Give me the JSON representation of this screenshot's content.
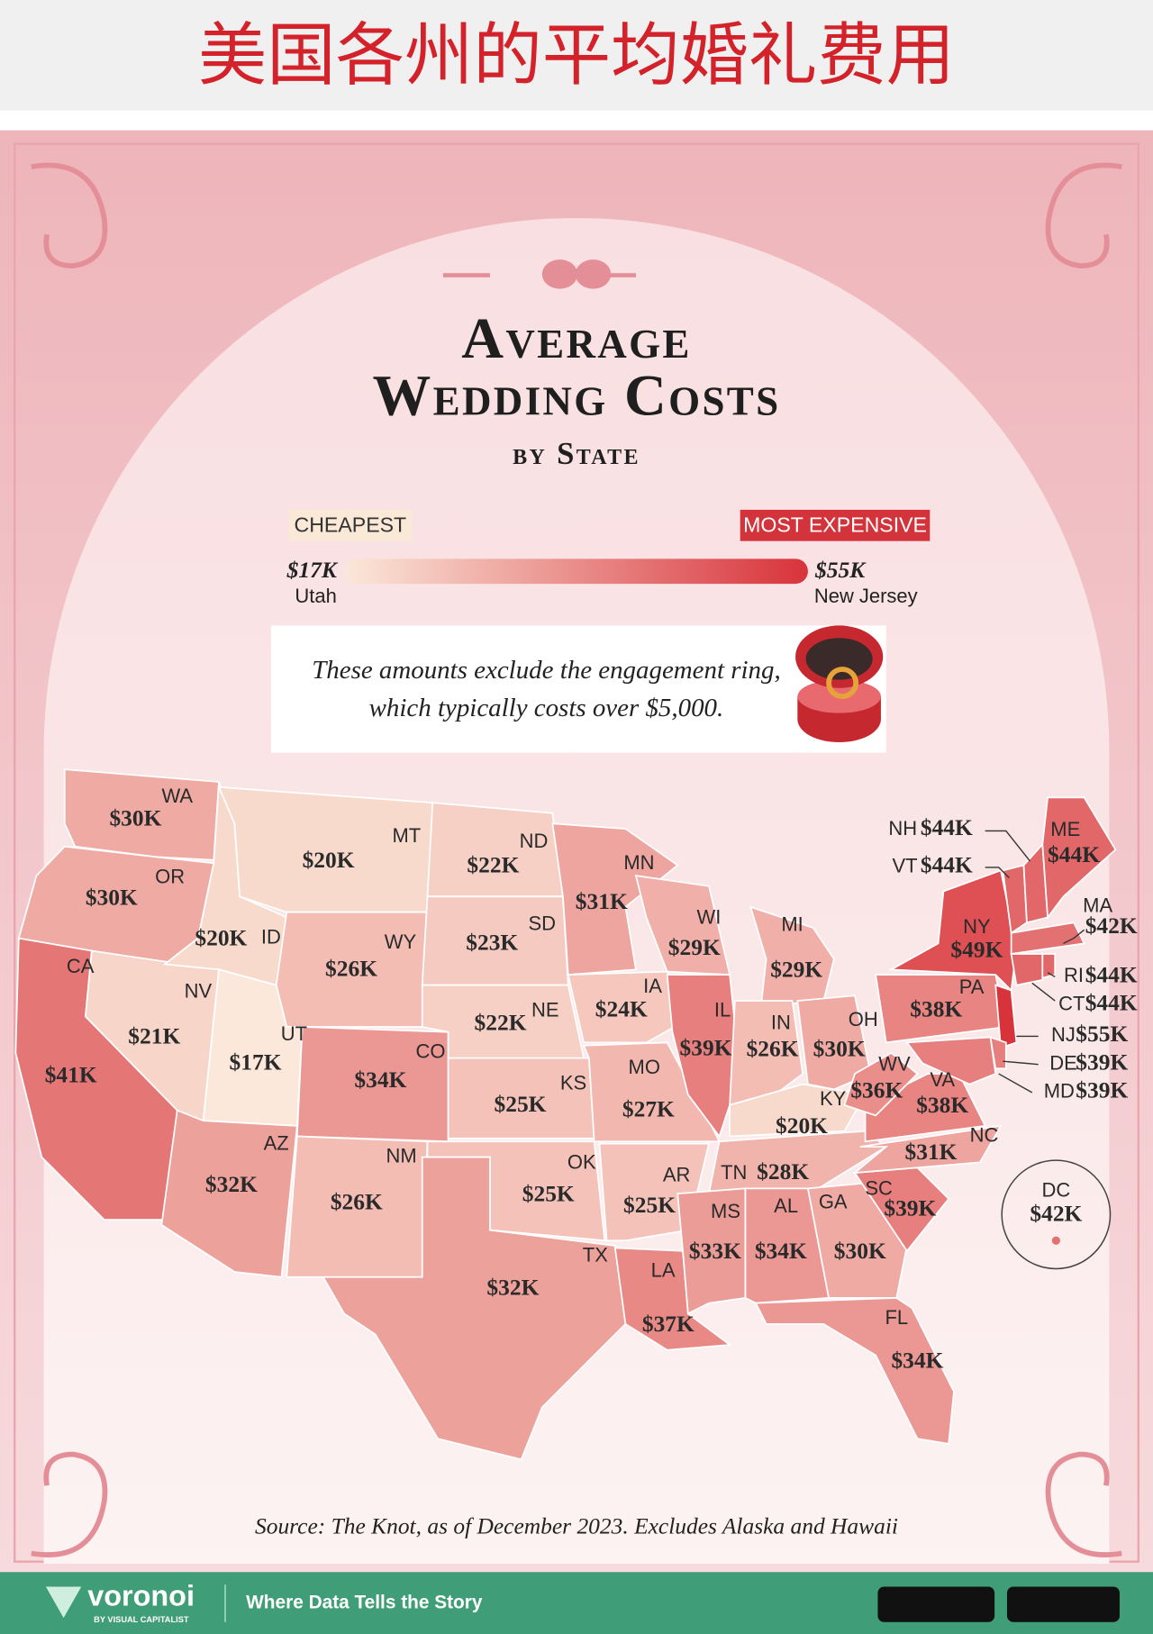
{
  "banner": "美国各州的平均婚礼费用",
  "title": {
    "line1": "Average",
    "line2": "Wedding Costs",
    "line3": "by State"
  },
  "legend": {
    "cheapest_tag": "CHEAPEST",
    "min_label": "$17K",
    "min_state": "Utah",
    "min": 17,
    "expensive_tag": "MOST EXPENSIVE",
    "max_label": "$55K",
    "max_state": "New Jersey",
    "max": 55,
    "colors": [
      "#fbe8da",
      "#d8333b"
    ]
  },
  "note": [
    "These amounts exclude the engagement ring,",
    "which typically costs over $5,000."
  ],
  "states": {
    "codes": [
      "WA",
      "OR",
      "CA",
      "NV",
      "ID",
      "MT",
      "WY",
      "UT",
      "CO",
      "AZ",
      "NM",
      "ND",
      "SD",
      "NE",
      "KS",
      "OK",
      "TX",
      "MN",
      "IA",
      "MO",
      "AR",
      "LA",
      "WI",
      "IL",
      "MI",
      "IN",
      "OH",
      "KY",
      "TN",
      "MS",
      "AL",
      "GA",
      "FL",
      "SC",
      "NC",
      "VA",
      "WV",
      "PA",
      "NY",
      "NJ",
      "DE",
      "MD",
      "VT",
      "NH",
      "ME",
      "MA",
      "CT",
      "RI",
      "DC"
    ],
    "values": [
      30,
      30,
      41,
      21,
      20,
      20,
      26,
      17,
      34,
      32,
      26,
      22,
      23,
      22,
      25,
      25,
      32,
      31,
      24,
      27,
      25,
      37,
      29,
      39,
      29,
      26,
      30,
      20,
      28,
      33,
      34,
      30,
      34,
      39,
      31,
      38,
      36,
      38,
      49,
      55,
      39,
      39,
      44,
      44,
      44,
      42,
      44,
      44,
      42
    ],
    "value_labels": [
      "$30K",
      "$30K",
      "$41K",
      "$21K",
      "$20K",
      "$20K",
      "$26K",
      "$17K",
      "$34K",
      "$32K",
      "$26K",
      "$22K",
      "$23K",
      "$22K",
      "$25K",
      "$25K",
      "$32K",
      "$31K",
      "$24K",
      "$27K",
      "$25K",
      "$37K",
      "$29K",
      "$39K",
      "$29K",
      "$26K",
      "$30K",
      "$20K",
      "$28K",
      "$33K",
      "$34K",
      "$30K",
      "$34K",
      "$39K",
      "$31K",
      "$38K",
      "$36K",
      "$38K",
      "$49K",
      "$55K",
      "$39K",
      "$39K",
      "$44K",
      "$44K",
      "$44K",
      "$42K",
      "$44K",
      "$44K",
      "$42K"
    ]
  },
  "source": "Source: The Knot, as of December 2023. Excludes Alaska and Hawaii",
  "footer": {
    "brand": "voronoi",
    "sub": "BY VISUAL CAPITALIST",
    "tagline": "Where Data Tells the Story"
  }
}
